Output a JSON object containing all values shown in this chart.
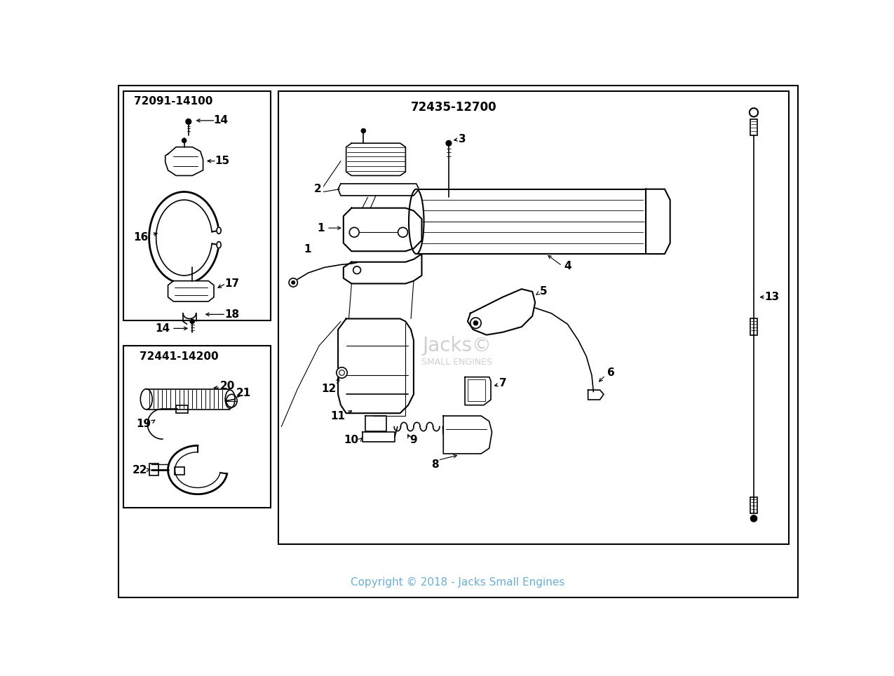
{
  "background_color": "#ffffff",
  "copyright_text": "Copyright © 2018 - Jacks Small Engines",
  "copyright_color": "#6ab0d4",
  "left_box1_label": "72091-14100",
  "left_box2_label": "72441-14200",
  "main_box_label": "72435-12700",
  "figsize": [
    12.75,
    9.64
  ],
  "dpi": 100,
  "lw_main": 1.5,
  "lw_part": 1.2,
  "lw_thin": 0.8
}
